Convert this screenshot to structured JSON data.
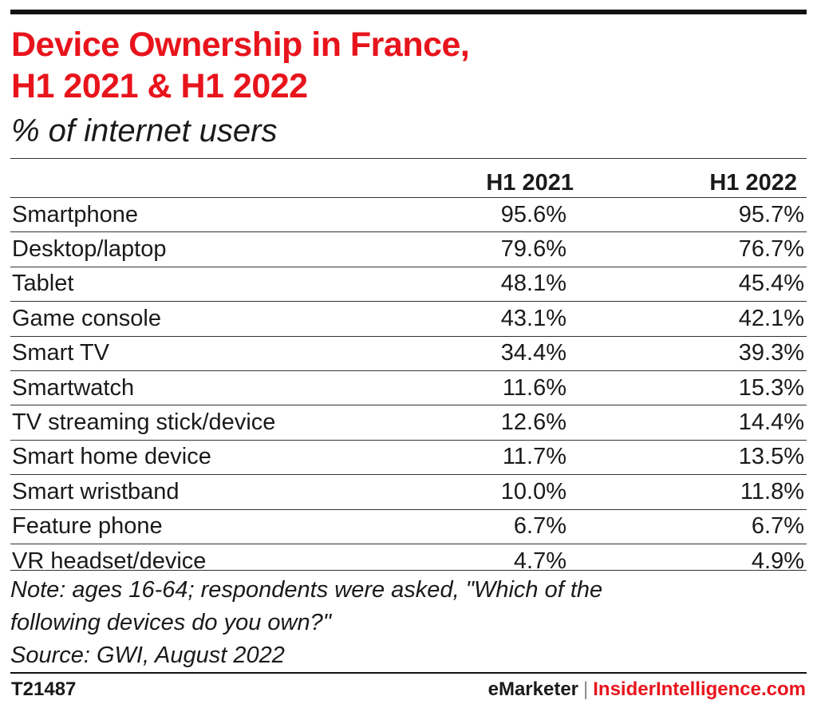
{
  "title_lines": [
    "Device Ownership in France,",
    "H1 2021 & H1 2022"
  ],
  "subtitle": "% of internet users",
  "columns": [
    "H1 2021",
    "H1 2022"
  ],
  "rows": [
    {
      "label": "Smartphone",
      "v1": "95.6%",
      "v2": "95.7%"
    },
    {
      "label": "Desktop/laptop",
      "v1": "79.6%",
      "v2": "76.7%"
    },
    {
      "label": "Tablet",
      "v1": "48.1%",
      "v2": "45.4%"
    },
    {
      "label": "Game console",
      "v1": "43.1%",
      "v2": "42.1%"
    },
    {
      "label": "Smart TV",
      "v1": "34.4%",
      "v2": "39.3%"
    },
    {
      "label": "Smartwatch",
      "v1": "11.6%",
      "v2": "15.3%"
    },
    {
      "label": "TV streaming stick/device",
      "v1": "12.6%",
      "v2": "14.4%"
    },
    {
      "label": "Smart home device",
      "v1": "11.7%",
      "v2": "13.5%"
    },
    {
      "label": "Smart wristband",
      "v1": "10.0%",
      "v2": "11.8%"
    },
    {
      "label": "Feature phone",
      "v1": "6.7%",
      "v2": "6.7%"
    },
    {
      "label": "VR headset/device",
      "v1": "4.7%",
      "v2": "4.9%"
    }
  ],
  "note_lines": [
    "Note: ages 16-64; respondents were asked, \"Which of the",
    "following devices do you own?\"",
    "Source: GWI, August 2022"
  ],
  "footer": {
    "chart_id": "T21487",
    "brand_left": "eMarketer",
    "separator": "|",
    "brand_right": "InsiderIntelligence.com"
  },
  "colors": {
    "title": "#e8141c",
    "text": "#1a1a1a",
    "rule": "#111111"
  },
  "chart_data": {
    "type": "table",
    "title": "Device Ownership in France, H1 2021 & H1 2022",
    "subtitle": "% of internet users",
    "columns": [
      "H1 2021",
      "H1 2022"
    ],
    "categories": [
      "Smartphone",
      "Desktop/laptop",
      "Tablet",
      "Game console",
      "Smart TV",
      "Smartwatch",
      "TV streaming stick/device",
      "Smart home device",
      "Smart wristband",
      "Feature phone",
      "VR headset/device"
    ],
    "series": [
      {
        "name": "H1 2021",
        "values": [
          95.6,
          79.6,
          48.1,
          43.1,
          34.4,
          11.6,
          12.6,
          11.7,
          10.0,
          6.7,
          4.7
        ]
      },
      {
        "name": "H1 2022",
        "values": [
          95.7,
          76.7,
          45.4,
          42.1,
          39.3,
          15.3,
          14.4,
          13.5,
          11.8,
          6.7,
          4.9
        ]
      }
    ]
  }
}
